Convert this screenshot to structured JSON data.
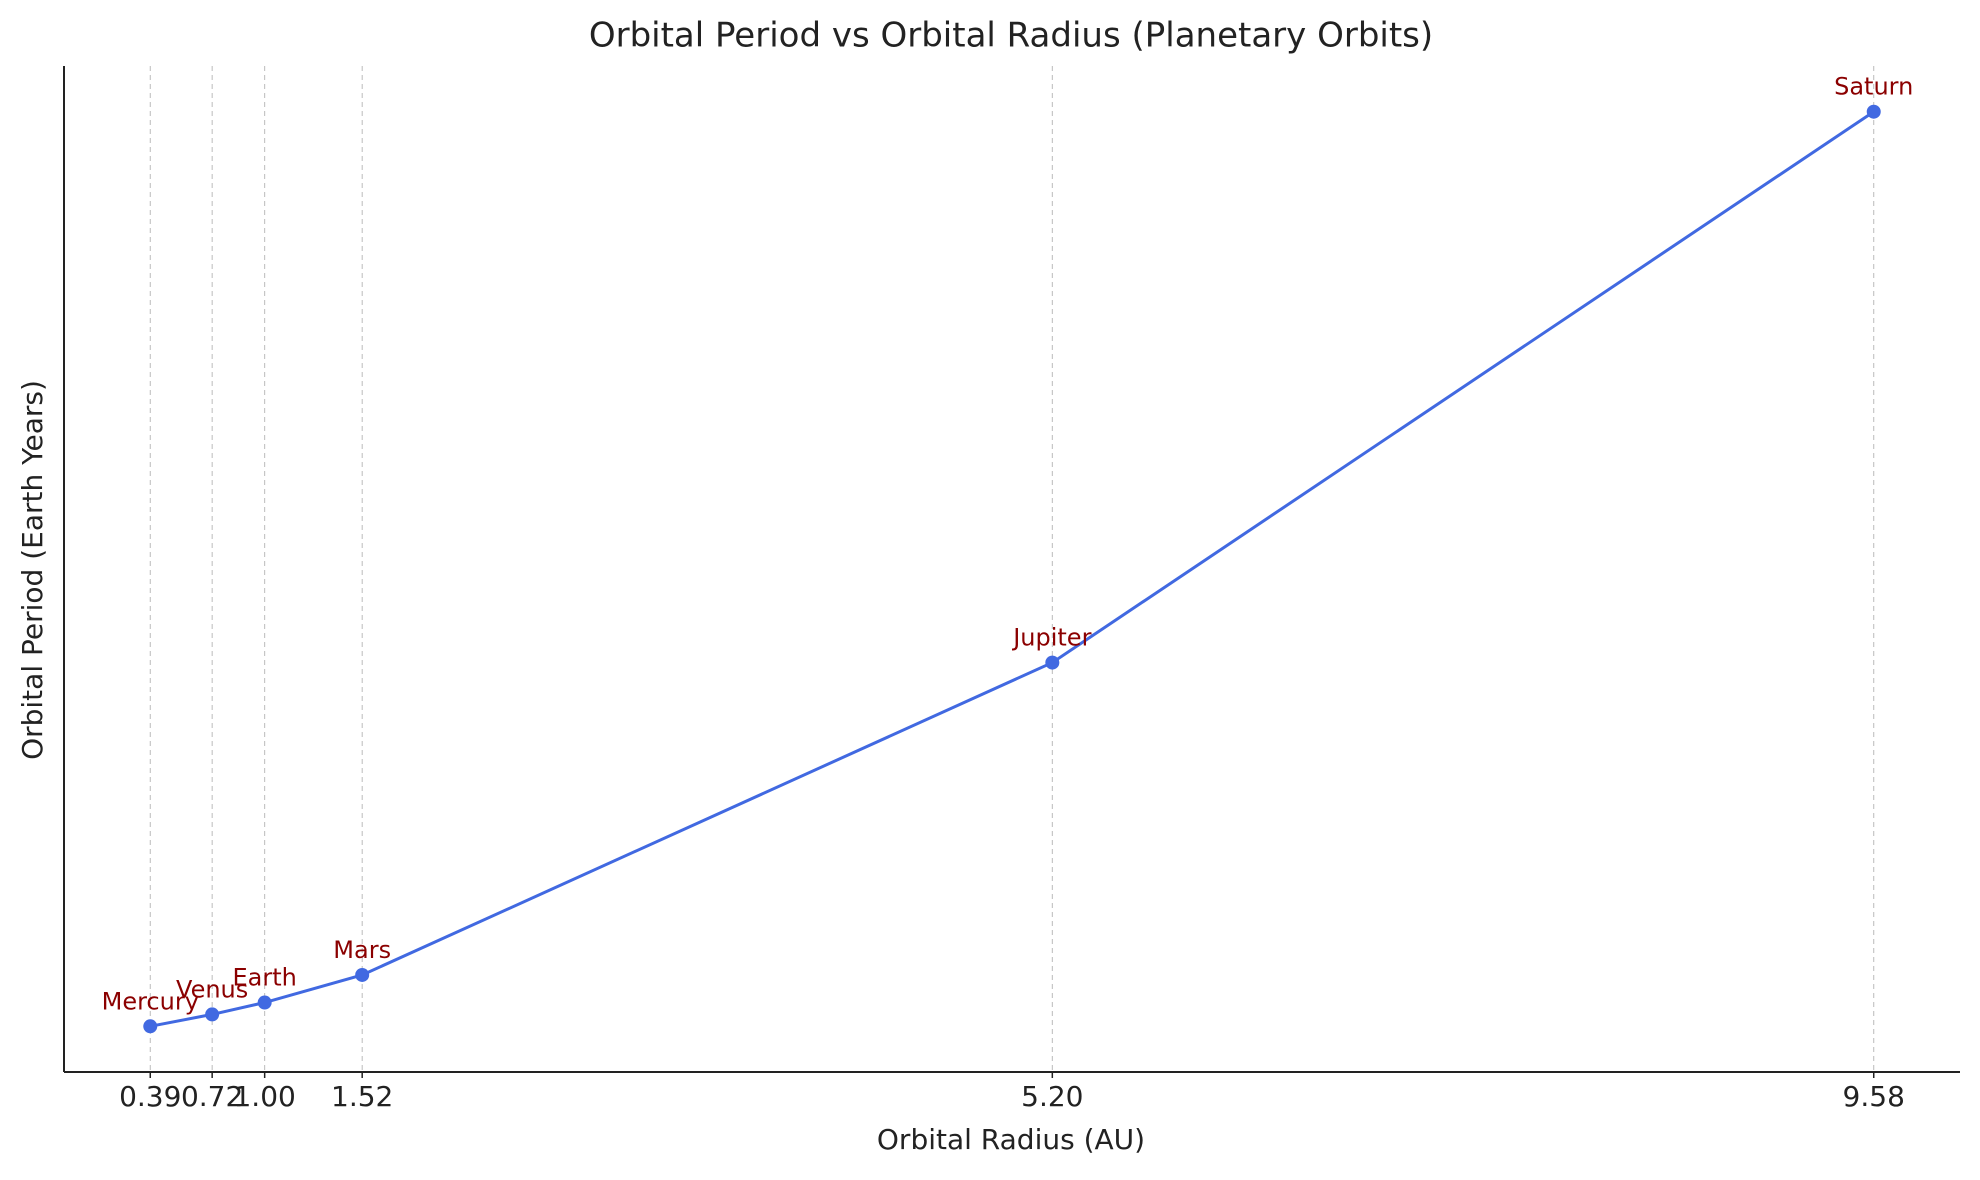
{
  "chart_data": {
    "type": "line",
    "title": "Orbital Period vs Orbital Radius (Planetary Orbits)",
    "x_label": "Orbital Radius (AU)",
    "y_label": "Orbital Period (Earth Years)",
    "x": [
      0.39,
      0.72,
      1.0,
      1.52,
      5.2,
      9.58
    ],
    "values": [
      0.24,
      0.62,
      1.0,
      1.88,
      11.86,
      29.46
    ],
    "point_labels": [
      "Mercury",
      "Venus",
      "Earth",
      "Mars",
      "Jupiter",
      "Saturn"
    ],
    "color": "#4169e1",
    "label_color": "#8b0000",
    "xlim": [
      -0.07,
      10.04
    ],
    "ylim": [
      -1.22,
      30.92
    ],
    "xticks": [
      0.39,
      0.72,
      {
        "value": 1,
        "label": "1.00"
      },
      1.52,
      {
        "value": 5.2,
        "label": "5.20"
      },
      9.58
    ],
    "grid": true
  }
}
